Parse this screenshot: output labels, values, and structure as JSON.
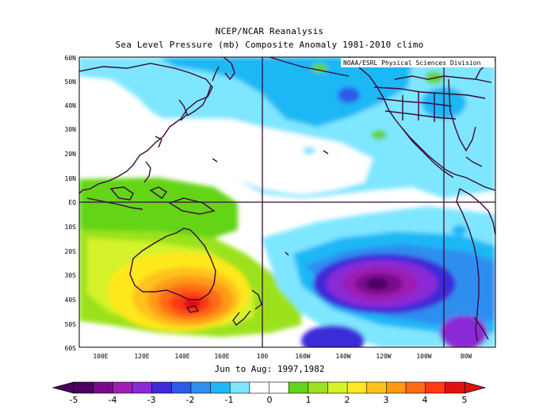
{
  "title": "NCEP/NCAR Reanalysis",
  "subtitle": "Sea Level Pressure (mb) Composite Anomaly 1981-2010 climo",
  "credit": "NOAA/ESRL Physical Sciences Division",
  "date_range": "Jun to Aug: 1997,1982",
  "lat_labels": [
    "60N",
    "50N",
    "40N",
    "30N",
    "20N",
    "10N",
    "EQ",
    "10S",
    "20S",
    "30S",
    "40S",
    "50S",
    "60S"
  ],
  "lon_labels": [
    "100E",
    "120E",
    "140E",
    "160E",
    "180",
    "160W",
    "140W",
    "120W",
    "100W",
    "80W"
  ],
  "colorbar": {
    "labels": [
      "-5",
      "-4",
      "-3",
      "-2",
      "-1",
      "0",
      "1",
      "2",
      "3",
      "4",
      "5"
    ],
    "colors": [
      "#4b0060",
      "#7a0a8c",
      "#9e1fb4",
      "#8a2ad6",
      "#3d2ad9",
      "#2a5ce8",
      "#2f8ef0",
      "#1fb7f5",
      "#7fe6ff",
      "#ffffff",
      "#ffffff",
      "#64d419",
      "#9be21f",
      "#d6f22a",
      "#ffe81f",
      "#ffc21a",
      "#ff9a14",
      "#ff6a14",
      "#ff3a14",
      "#e01010"
    ]
  },
  "colors": {
    "land_outline": "#3a0a3a",
    "grid_line": "#3a0a3a",
    "background": "#ffffff"
  }
}
